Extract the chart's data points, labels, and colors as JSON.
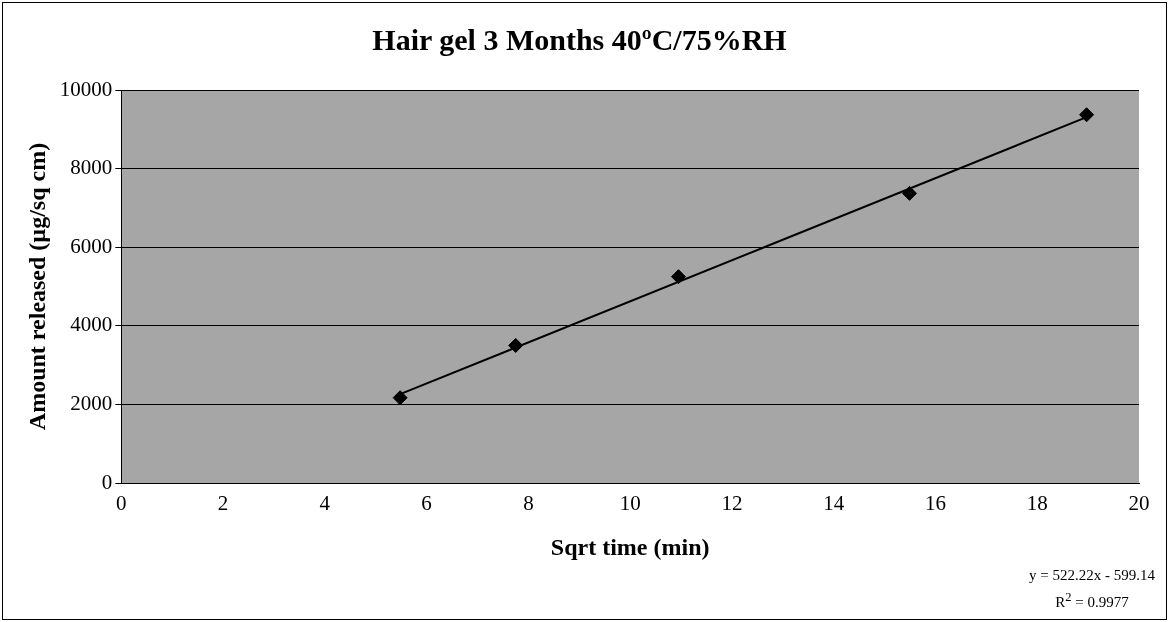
{
  "chart_data": {
    "type": "scatter",
    "title": "Hair gel 3 Months 40ºC/75%RH",
    "xlabel": "Sqrt time (min)",
    "ylabel": "Amount released (µg/sq cm)",
    "series": [
      {
        "type": "scatter",
        "color": "#000000",
        "x": [
          5.48,
          7.75,
          10.95,
          15.49,
          18.97
        ],
        "values": [
          2170,
          3500,
          5250,
          7370,
          9370
        ]
      },
      {
        "type": "line",
        "color": "#000000",
        "x": [
          5.48,
          18.97
        ],
        "values": [
          2260,
          9310
        ],
        "marker": "none"
      }
    ],
    "xlim": [
      0,
      20
    ],
    "xticks": [
      0,
      2,
      4,
      6,
      8,
      10,
      12,
      14,
      16,
      18,
      20
    ],
    "ylim": [
      0,
      10000
    ],
    "yticks": [
      0,
      2000,
      4000,
      6000,
      8000,
      10000
    ],
    "grid": "y",
    "legend": false,
    "marker": "diamond",
    "line_style": "solid",
    "annotations": [
      "y = 522.22x - 599.14",
      "R$^{2}$ = 0.9977"
    ]
  }
}
